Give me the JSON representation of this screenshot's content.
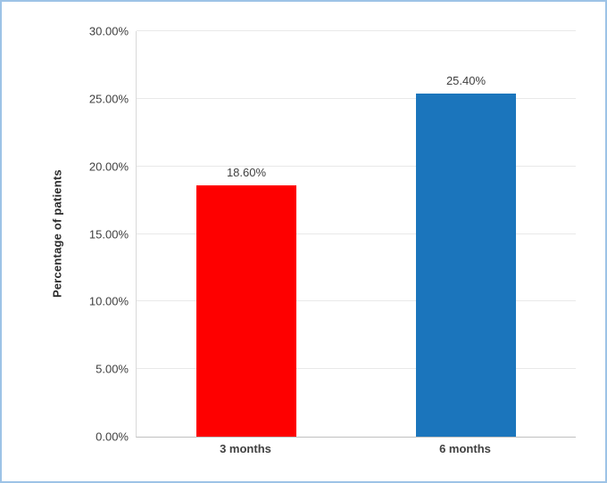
{
  "frame": {
    "border_color": "#9DC3E6",
    "background": "#FFFFFF"
  },
  "chart_data": {
    "type": "bar",
    "title": "",
    "xlabel": "",
    "ylabel": "Percentage of patients",
    "categories": [
      "3 months",
      "6 months"
    ],
    "values": [
      18.6,
      25.4
    ],
    "value_labels": [
      "18.60%",
      "25.40%"
    ],
    "bar_colors": [
      "#FE0000",
      "#1B75BC"
    ],
    "ylim": [
      0,
      30
    ],
    "yticks": [
      0,
      5,
      10,
      15,
      20,
      25,
      30
    ],
    "ytick_labels": [
      "0.00%",
      "5.00%",
      "10.00%",
      "15.00%",
      "20.00%",
      "25.00%",
      "30.00%"
    ],
    "grid": true,
    "legend_position": "none"
  }
}
